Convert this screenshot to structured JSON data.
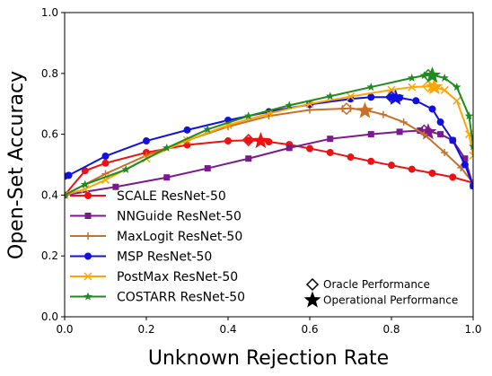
{
  "chart_data": {
    "type": "line",
    "title": "",
    "xlabel": "Unknown Rejection Rate",
    "ylabel": "Open-Set Accuracy",
    "xlim": [
      0,
      1
    ],
    "ylim": [
      0,
      1
    ],
    "xticks": [
      "0.0",
      "0.2",
      "0.4",
      "0.6",
      "0.8",
      "1.0"
    ],
    "yticks": [
      "0.0",
      "0.2",
      "0.4",
      "0.6",
      "0.8",
      "1.0"
    ],
    "grid": false,
    "legend_placement": "lower-left",
    "series": [
      {
        "name": "SCALE ResNet-50",
        "color": "#ee1111",
        "marker": "circle",
        "x": [
          0.0,
          0.05,
          0.1,
          0.2,
          0.3,
          0.4,
          0.45,
          0.48,
          0.5,
          0.55,
          0.6,
          0.65,
          0.7,
          0.75,
          0.8,
          0.85,
          0.9,
          0.95,
          1.0
        ],
        "y": [
          0.4,
          0.48,
          0.505,
          0.54,
          0.565,
          0.578,
          0.58,
          0.578,
          0.575,
          0.566,
          0.553,
          0.54,
          0.525,
          0.511,
          0.498,
          0.485,
          0.472,
          0.459,
          0.44
        ],
        "oracle": {
          "x": 0.45,
          "y": 0.581
        },
        "operational": {
          "x": 0.48,
          "y": 0.578
        }
      },
      {
        "name": "NNGuide ResNet-50",
        "color": "#7a1a8c",
        "marker": "square",
        "x": [
          0.0,
          0.125,
          0.25,
          0.35,
          0.45,
          0.55,
          0.65,
          0.75,
          0.82,
          0.87,
          0.89,
          0.92,
          0.95,
          0.98,
          1.0
        ],
        "y": [
          0.4,
          0.427,
          0.458,
          0.488,
          0.52,
          0.555,
          0.585,
          0.6,
          0.608,
          0.612,
          0.61,
          0.6,
          0.58,
          0.52,
          0.43
        ],
        "oracle": {
          "x": 0.88,
          "y": 0.612
        },
        "operational": {
          "x": 0.89,
          "y": 0.607
        }
      },
      {
        "name": "MaxLogit ResNet-50",
        "color": "#c8702a",
        "marker": "plus",
        "x": [
          0.0,
          0.1,
          0.2,
          0.3,
          0.4,
          0.5,
          0.6,
          0.68,
          0.7,
          0.74,
          0.78,
          0.83,
          0.88,
          0.93,
          0.97,
          1.0
        ],
        "y": [
          0.4,
          0.47,
          0.53,
          0.58,
          0.625,
          0.66,
          0.68,
          0.684,
          0.685,
          0.678,
          0.665,
          0.64,
          0.6,
          0.54,
          0.49,
          0.44
        ],
        "oracle": {
          "x": 0.69,
          "y": 0.684
        },
        "operational": {
          "x": 0.735,
          "y": 0.677
        }
      },
      {
        "name": "MSP ResNet-50",
        "color": "#1010e0",
        "marker": "circle",
        "x": [
          0.0,
          0.01,
          0.1,
          0.2,
          0.3,
          0.4,
          0.5,
          0.6,
          0.7,
          0.75,
          0.8,
          0.82,
          0.86,
          0.9,
          0.92,
          0.95,
          0.98,
          1.0
        ],
        "y": [
          0.462,
          0.465,
          0.528,
          0.578,
          0.614,
          0.646,
          0.674,
          0.698,
          0.716,
          0.722,
          0.722,
          0.72,
          0.71,
          0.683,
          0.64,
          0.58,
          0.5,
          0.43
        ],
        "oracle": {
          "x": 0.8,
          "y": 0.722
        },
        "operational": {
          "x": 0.81,
          "y": 0.72
        }
      },
      {
        "name": "PostMax ResNet-50",
        "color": "#ffa500",
        "marker": "x",
        "x": [
          0.0,
          0.05,
          0.1,
          0.2,
          0.3,
          0.4,
          0.5,
          0.6,
          0.7,
          0.8,
          0.85,
          0.9,
          0.93,
          0.96,
          0.99,
          1.0
        ],
        "y": [
          0.4,
          0.42,
          0.45,
          0.52,
          0.58,
          0.63,
          0.668,
          0.7,
          0.724,
          0.746,
          0.755,
          0.758,
          0.745,
          0.71,
          0.6,
          0.53
        ],
        "oracle": {
          "x": 0.89,
          "y": 0.758
        },
        "operational": {
          "x": 0.905,
          "y": 0.755
        }
      },
      {
        "name": "COSTARR ResNet-50",
        "color": "#1f8a1f",
        "marker": "star",
        "x": [
          0.0,
          0.05,
          0.15,
          0.25,
          0.35,
          0.45,
          0.55,
          0.65,
          0.75,
          0.85,
          0.88,
          0.9,
          0.93,
          0.96,
          0.99,
          1.0
        ],
        "y": [
          0.4,
          0.435,
          0.484,
          0.555,
          0.616,
          0.66,
          0.695,
          0.725,
          0.755,
          0.785,
          0.793,
          0.795,
          0.785,
          0.755,
          0.66,
          0.56
        ],
        "oracle": {
          "x": 0.89,
          "y": 0.794
        },
        "operational": {
          "x": 0.9,
          "y": 0.793
        }
      }
    ],
    "marker_legend": [
      {
        "label": "Oracle Performance",
        "marker": "diamond-open"
      },
      {
        "label": "Operational Performance",
        "marker": "star-filled"
      }
    ]
  }
}
